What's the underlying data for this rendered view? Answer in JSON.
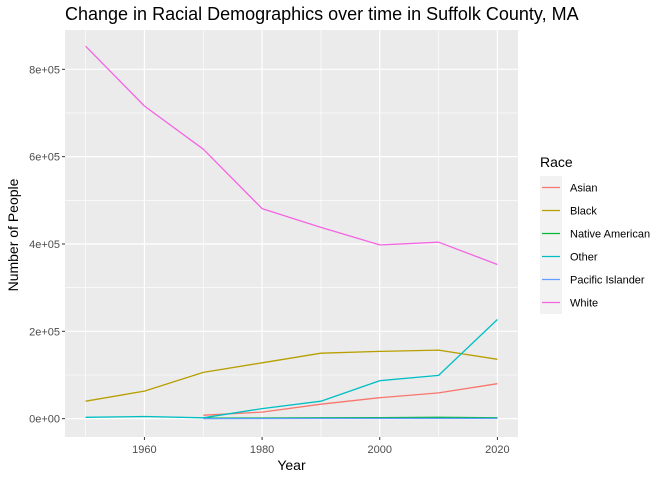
{
  "chart_data": {
    "type": "line",
    "title": "Change in Racial Demographics over time in Suffolk County, MA",
    "xlabel": "Year",
    "ylabel": "Number of People",
    "xlim": [
      1946.5,
      2023.5
    ],
    "ylim": [
      -42000,
      890000
    ],
    "x_ticks": [
      1960,
      1980,
      2000,
      2020
    ],
    "x_tick_labels": [
      "1960",
      "1980",
      "2000",
      "2020"
    ],
    "y_ticks": [
      0,
      200000,
      400000,
      600000,
      800000
    ],
    "y_tick_labels": [
      "0e+00",
      "2e+05",
      "4e+05",
      "6e+05",
      "8e+05"
    ],
    "grid": true,
    "legend": {
      "title": "Race",
      "position": "right"
    },
    "series": [
      {
        "name": "Asian",
        "color": "#F8766D",
        "x": [
          1970,
          1980,
          1990,
          2000,
          2010,
          2020
        ],
        "y": [
          8000,
          15000,
          33000,
          48000,
          59000,
          80000
        ]
      },
      {
        "name": "Black",
        "color": "#B79F00",
        "x": [
          1950,
          1960,
          1970,
          1980,
          1990,
          2000,
          2010,
          2020
        ],
        "y": [
          40000,
          63000,
          106000,
          128000,
          150000,
          154000,
          157000,
          136000
        ]
      },
      {
        "name": "Native American",
        "color": "#00BA38",
        "x": [
          1970,
          1980,
          1990,
          2000,
          2010,
          2020
        ],
        "y": [
          1000,
          1500,
          2000,
          2500,
          3000,
          2000
        ]
      },
      {
        "name": "Other",
        "color": "#00BFC4",
        "x": [
          1950,
          1960,
          1970,
          1980,
          1990,
          2000,
          2010,
          2020
        ],
        "y": [
          3000,
          5000,
          2000,
          23000,
          40000,
          87000,
          99000,
          227000
        ]
      },
      {
        "name": "Pacific Islander",
        "color": "#619CFF",
        "x": [
          1970,
          1980,
          1990,
          2000,
          2010,
          2020
        ],
        "y": [
          100,
          300,
          500,
          600,
          700,
          600
        ]
      },
      {
        "name": "White",
        "color": "#F564E3",
        "x": [
          1950,
          1960,
          1970,
          1980,
          1990,
          2000,
          2010,
          2020
        ],
        "y": [
          853000,
          716000,
          617000,
          481000,
          438000,
          398000,
          404000,
          353000
        ]
      }
    ]
  }
}
